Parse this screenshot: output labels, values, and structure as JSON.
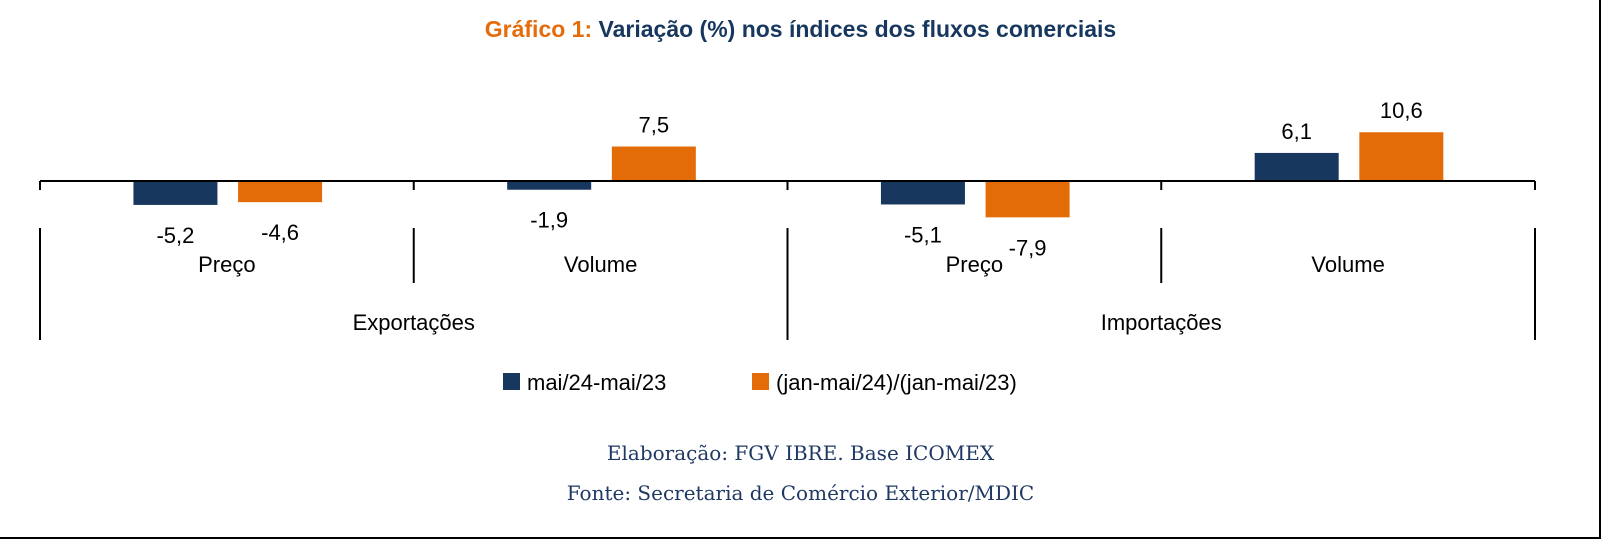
{
  "title": {
    "prefix": "Gráfico 1:",
    "main": "Variação (%) nos índices dos fluxos comerciais"
  },
  "colors": {
    "monthly": "#17375E",
    "ytd": "#E36C09",
    "title_prefix": "#E46C0A",
    "title_main": "#17375E",
    "footnote": "#1F3864"
  },
  "chart_data": {
    "type": "bar",
    "groups": [
      "Exportações",
      "Importações"
    ],
    "categories": [
      {
        "group": "Exportações",
        "label": "Preço"
      },
      {
        "group": "Exportações",
        "label": "Volume"
      },
      {
        "group": "Importações",
        "label": "Preço"
      },
      {
        "group": "Importações",
        "label": "Volume"
      }
    ],
    "series": [
      {
        "name": "mai/24-mai/23",
        "values": [
          -5.2,
          -1.9,
          -5.1,
          6.1
        ],
        "labels": [
          "-5,2",
          "-1,9",
          "-5,1",
          "6,1"
        ]
      },
      {
        "name": "(jan-mai/24)/(jan-mai/23)",
        "values": [
          -4.6,
          7.5,
          -7.9,
          10.6
        ],
        "labels": [
          "-4,6",
          "7,5",
          "-7,9",
          "10,6"
        ]
      }
    ],
    "legend_position": "bottom",
    "grid": false
  },
  "footnotes": {
    "line1": "Elaboração: FGV IBRE. Base ICOMEX",
    "line2": "Fonte: Secretaria de Comércio Exterior/MDIC"
  }
}
